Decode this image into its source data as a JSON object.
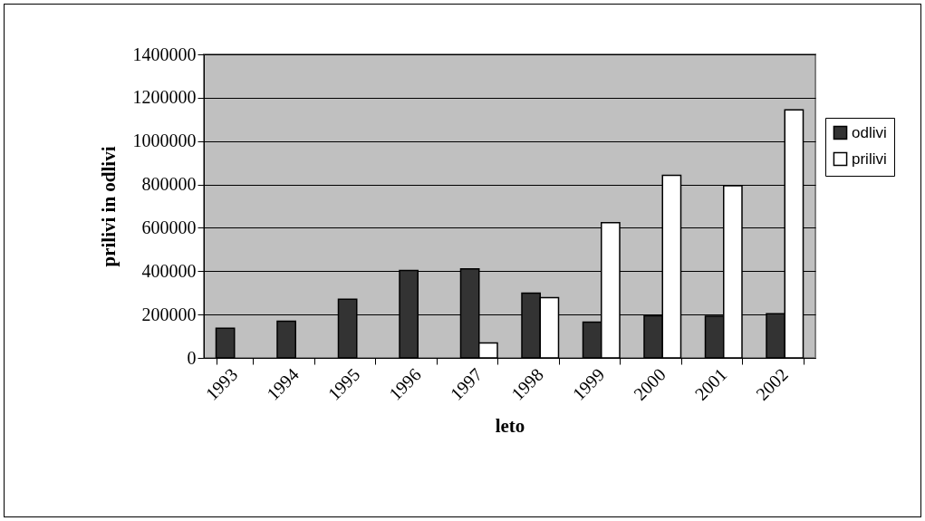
{
  "chart_data": {
    "type": "bar",
    "xlabel": "leto",
    "ylabel": "prilivi in odlivi",
    "categories": [
      "1993",
      "1994",
      "1995",
      "1996",
      "1997",
      "1998",
      "1999",
      "2000",
      "2001",
      "2002"
    ],
    "series": [
      {
        "name": "odlivi",
        "color": "#333333",
        "values": [
          137000,
          169000,
          271000,
          403000,
          411000,
          299000,
          165000,
          194000,
          192000,
          204000
        ]
      },
      {
        "name": "prilivi",
        "color": "#ffffff",
        "values": [
          null,
          null,
          null,
          null,
          69000,
          278000,
          624000,
          842000,
          794000,
          1144000
        ]
      }
    ],
    "ylim": [
      0,
      1400000
    ],
    "yticks": [
      0,
      200000,
      400000,
      600000,
      800000,
      1000000,
      1200000,
      1400000
    ],
    "grid": "y",
    "legend": "right"
  }
}
